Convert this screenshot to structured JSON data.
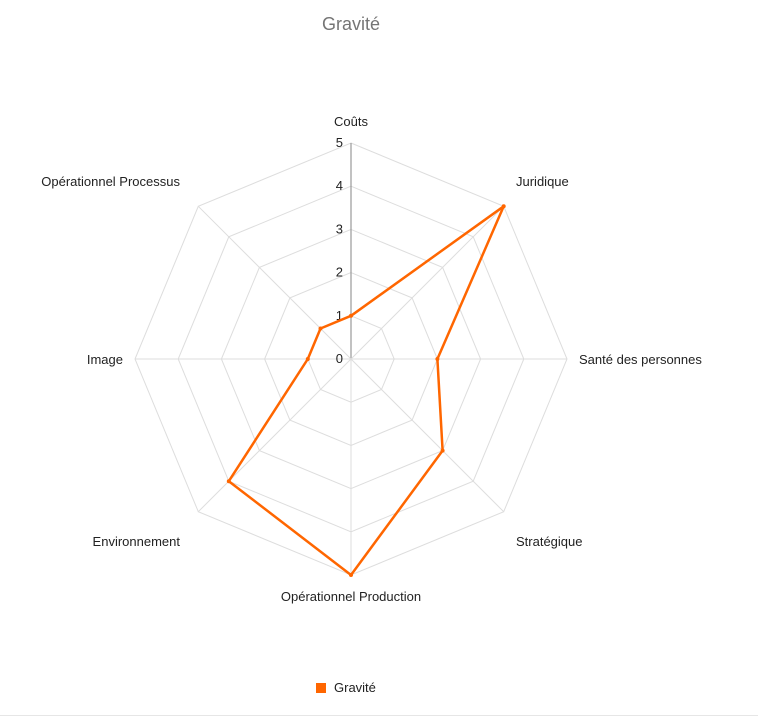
{
  "colors": {
    "series": "#ff6600",
    "grid": "#dddddd",
    "axis": "#999999",
    "title": "#757575",
    "label": "#222222"
  },
  "chart_data": {
    "type": "radar",
    "title": "Gravité",
    "categories": [
      "Coûts",
      "Juridique",
      "Santé des personnes",
      "Stratégique",
      "Opérationnel Production",
      "Environnement",
      "Image",
      "Opérationnel Processus"
    ],
    "series": [
      {
        "name": "Gravité",
        "values": [
          1,
          5,
          2,
          3,
          5,
          4,
          1,
          1
        ]
      }
    ],
    "rlim": [
      0,
      5
    ],
    "ticks": [
      "0",
      "1",
      "2",
      "3",
      "4",
      "5"
    ],
    "grid": true,
    "legend": "bottom"
  }
}
